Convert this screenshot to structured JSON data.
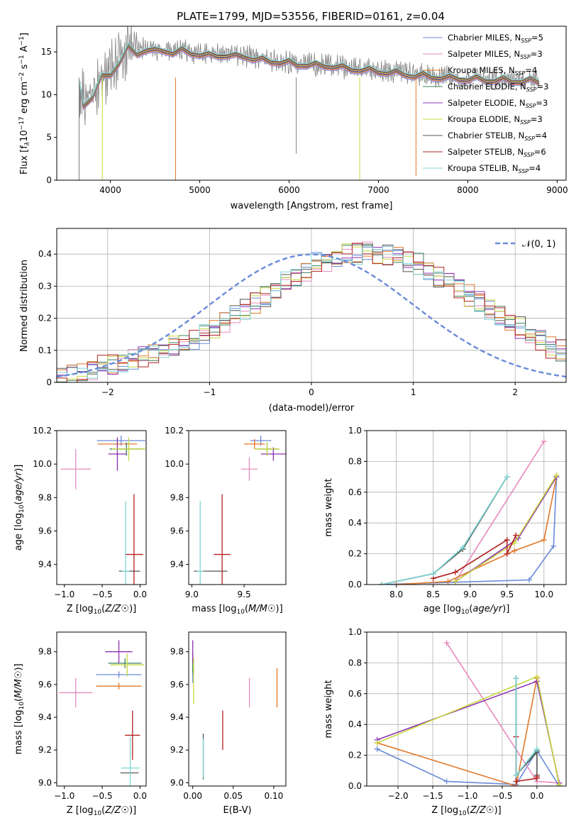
{
  "title": "PLATE=1799, MJD=53556, FIBERID=0161, z=0.04",
  "series": [
    {
      "name": "Chabrier MILES, N",
      "sub": "SSP",
      "eq": "=5",
      "color": "#6a8ad8"
    },
    {
      "name": "Salpeter MILES, N",
      "sub": "SSP",
      "eq": "=3",
      "color": "#e68bbe"
    },
    {
      "name": "Kroupa MILES, N",
      "sub": "SSP",
      "eq": "=4",
      "color": "#e0782a"
    },
    {
      "name": "Chabrier ELODIE, N",
      "sub": "SSP",
      "eq": "=3",
      "color": "#3e7e5e"
    },
    {
      "name": "Salpeter ELODIE, N",
      "sub": "SSP",
      "eq": "=3",
      "color": "#8e30b0"
    },
    {
      "name": "Kroupa ELODIE, N",
      "sub": "SSP",
      "eq": "=3",
      "color": "#c5d840"
    },
    {
      "name": "Chabrier STELIB, N",
      "sub": "SSP",
      "eq": "=4",
      "color": "#555555"
    },
    {
      "name": "Salpeter STELIB, N",
      "sub": "SSP",
      "eq": "=6",
      "color": "#b22020"
    },
    {
      "name": "Kroupa STELIB, N",
      "sub": "SSP",
      "eq": "=4",
      "color": "#7ed6d6"
    }
  ],
  "chart_data": [
    {
      "id": "spectrum",
      "type": "line",
      "xlabel": "wavelength [Angstrom, rest frame]",
      "ylabel": "Flux [f",
      "ylabel_parts": [
        "Flux [f",
        "λ",
        "10",
        "−17",
        " erg cm",
        "−2",
        " s",
        "−1",
        " A",
        "−1",
        "]"
      ],
      "xlim": [
        3400,
        9100
      ],
      "ylim": [
        0,
        18
      ],
      "xticks": [
        4000,
        5000,
        6000,
        7000,
        8000,
        9000
      ],
      "yticks": [
        0,
        5,
        10,
        15
      ],
      "x": [
        3650,
        3700,
        3800,
        3900,
        4000,
        4100,
        4200,
        4300,
        4400,
        4500,
        4600,
        4700,
        4800,
        4900,
        5000,
        5100,
        5200,
        5300,
        5400,
        5500,
        5600,
        5700,
        5800,
        5900,
        6000,
        6100,
        6200,
        6300,
        6400,
        6500,
        6600,
        6700,
        6800,
        6900,
        7000,
        7100,
        7200,
        7300,
        7400,
        7500,
        7600,
        7700,
        7800,
        7900,
        8000,
        8100,
        8200,
        8300,
        8400,
        8500,
        8600,
        8700,
        8800
      ],
      "data_flux": [
        11.0,
        9.5,
        10.5,
        11.5,
        13.0,
        14.5,
        15.0,
        15.5,
        15.5,
        15.2,
        15.4,
        15.0,
        15.3,
        15.0,
        14.8,
        14.6,
        14.7,
        14.8,
        14.5,
        14.6,
        14.3,
        14.1,
        14.0,
        13.9,
        13.8,
        13.6,
        13.6,
        13.5,
        13.5,
        13.4,
        13.2,
        13.1,
        13.0,
        12.9,
        12.8,
        12.7,
        12.6,
        12.5,
        12.3,
        12.3,
        12.2,
        12.1,
        12.0,
        12.0,
        11.9,
        11.9,
        11.8,
        11.8,
        11.8,
        11.7,
        11.7,
        11.7,
        11.6
      ],
      "model_flux": [
        10.5,
        9.2,
        10.2,
        11.3,
        12.8,
        14.2,
        14.8,
        15.2,
        15.3,
        15.0,
        15.2,
        14.9,
        15.1,
        14.9,
        14.7,
        14.5,
        14.6,
        14.6,
        14.4,
        14.5,
        14.2,
        14.0,
        13.9,
        13.8,
        13.7,
        13.5,
        13.5,
        13.4,
        13.4,
        13.3,
        13.1,
        13.0,
        12.9,
        12.8,
        12.7,
        12.6,
        12.5,
        12.4,
        12.2,
        12.2,
        12.1,
        12.0,
        11.9,
        11.9,
        11.8,
        11.8,
        11.7,
        11.7,
        11.7,
        11.6,
        11.6,
        11.6,
        11.5
      ],
      "absorption_lines": [
        {
          "x": 3650,
          "y": 0.0
        },
        {
          "x": 3910,
          "y": 0.0
        },
        {
          "x": 4730,
          "y": 0.0
        },
        {
          "x": 6790,
          "y": 0.0
        },
        {
          "x": 7420,
          "y": 0.5
        },
        {
          "x": 6080,
          "y": 3.1
        }
      ]
    },
    {
      "id": "residuals",
      "type": "histogram",
      "xlabel": "(data-model)/error",
      "ylabel": "Normed distribution",
      "xlim": [
        -2.5,
        2.5
      ],
      "ylim": [
        0,
        0.48
      ],
      "xticks": [
        -2,
        -1,
        0,
        1,
        2
      ],
      "yticks": [
        0.0,
        0.1,
        0.2,
        0.3,
        0.4
      ],
      "grid": true,
      "legend": {
        "label": "𝒩(0, 1)",
        "position": "upper right",
        "color": "#6a8ad8"
      },
      "bin_width": 0.1,
      "bin_start": -2.5,
      "values": [
        0.02,
        0.02,
        0.03,
        0.04,
        0.05,
        0.06,
        0.06,
        0.07,
        0.08,
        0.09,
        0.1,
        0.11,
        0.12,
        0.13,
        0.15,
        0.17,
        0.19,
        0.21,
        0.23,
        0.25,
        0.27,
        0.29,
        0.31,
        0.33,
        0.35,
        0.37,
        0.38,
        0.39,
        0.4,
        0.4,
        0.41,
        0.4,
        0.4,
        0.39,
        0.38,
        0.37,
        0.35,
        0.33,
        0.31,
        0.29,
        0.27,
        0.25,
        0.23,
        0.21,
        0.19,
        0.17,
        0.15,
        0.13,
        0.11,
        0.1
      ]
    },
    {
      "id": "age-vs-z",
      "type": "errorbar",
      "xlabel": "Z [log",
      "ylabel": "age [log",
      "xlim": [
        -1.1,
        0.08
      ],
      "ylim": [
        9.28,
        10.2
      ],
      "xticks": [
        -1.0,
        -0.5,
        0.0
      ],
      "xticklabels": [
        "−1.0",
        "−0.5",
        "0.0"
      ],
      "yticks": [
        9.4,
        9.6,
        9.8,
        10.0,
        10.2
      ],
      "yticklabels": [
        "9.4",
        "9.6",
        "9.8",
        "10.0",
        "10.2"
      ],
      "points": [
        {
          "s": 0,
          "x": -0.25,
          "xerr": 0.32,
          "y": 10.14,
          "yerr": 0.03
        },
        {
          "s": 1,
          "x": -0.85,
          "xerr": 0.2,
          "y": 9.97,
          "yerr": 0.12
        },
        {
          "s": 2,
          "x": -0.3,
          "xerr": 0.26,
          "y": 10.12,
          "yerr": 0.03
        },
        {
          "s": 3,
          "x": -0.18,
          "xerr": 0.22,
          "y": 10.09,
          "yerr": 0.04
        },
        {
          "s": 4,
          "x": -0.3,
          "xerr": 0.12,
          "y": 10.06,
          "yerr": 0.1
        },
        {
          "s": 5,
          "x": -0.15,
          "xerr": 0.22,
          "y": 10.09,
          "yerr": 0.07
        },
        {
          "s": 6,
          "x": -0.14,
          "xerr": 0.14,
          "y": 9.36,
          "yerr": 0.0
        },
        {
          "s": 7,
          "x": -0.08,
          "xerr": 0.12,
          "y": 9.46,
          "yerr": 0.36
        },
        {
          "s": 8,
          "x": -0.19,
          "xerr": 0.05,
          "y": 9.36,
          "yerr": 0.42
        }
      ]
    },
    {
      "id": "age-vs-mass",
      "type": "errorbar",
      "xlabel": "mass [log",
      "ylabel": "",
      "xlim": [
        8.97,
        9.9
      ],
      "ylim": [
        9.28,
        10.2
      ],
      "xticks": [
        9.0,
        9.5
      ],
      "xticklabels": [
        "9.0",
        "9.5"
      ],
      "yticks": [
        9.4,
        9.6,
        9.8,
        10.0,
        10.2
      ],
      "yticklabels": [
        "9.4",
        "9.6",
        "9.8",
        "10.0",
        "10.2"
      ],
      "points": [
        {
          "s": 0,
          "x": 9.66,
          "xerr": 0.1,
          "y": 10.14,
          "yerr": 0.03
        },
        {
          "s": 1,
          "x": 9.55,
          "xerr": 0.08,
          "y": 9.97,
          "yerr": 0.07
        },
        {
          "s": 2,
          "x": 9.6,
          "xerr": 0.1,
          "y": 10.12,
          "yerr": 0.03
        },
        {
          "s": 3,
          "x": 9.72,
          "xerr": 0.1,
          "y": 10.09,
          "yerr": 0.04
        },
        {
          "s": 4,
          "x": 9.78,
          "xerr": 0.12,
          "y": 10.06,
          "yerr": 0.04
        },
        {
          "s": 5,
          "x": 9.72,
          "xerr": 0.12,
          "y": 10.09,
          "yerr": 0.04
        },
        {
          "s": 6,
          "x": 9.18,
          "xerr": 0.16,
          "y": 9.36,
          "yerr": 0.0
        },
        {
          "s": 7,
          "x": 9.29,
          "xerr": 0.08,
          "y": 9.46,
          "yerr": 0.36
        },
        {
          "s": 8,
          "x": 9.08,
          "xerr": 0.03,
          "y": 9.36,
          "yerr": 0.42
        }
      ]
    },
    {
      "id": "weight-vs-age",
      "type": "line",
      "xlabel": "age [log",
      "ylabel": "mass weight",
      "xlim": [
        7.6,
        10.3
      ],
      "ylim": [
        0,
        1
      ],
      "xticks": [
        8.0,
        8.5,
        9.0,
        9.5,
        10.0
      ],
      "xticklabels": [
        "8.0",
        "8.5",
        "9.0",
        "9.5",
        "10.0"
      ],
      "yticks": [
        0.0,
        0.2,
        0.4,
        0.6,
        0.8,
        1.0
      ],
      "yticklabels": [
        "0.0",
        "0.2",
        "0.4",
        "0.6",
        "0.8",
        "1.0"
      ],
      "grid": true,
      "lines": [
        {
          "s": 0,
          "x": [
            7.8,
            9.8,
            10.13,
            10.17
          ],
          "y": [
            0.0,
            0.03,
            0.25,
            0.7
          ]
        },
        {
          "s": 1,
          "x": [
            8.8,
            10.0
          ],
          "y": [
            0.02,
            0.93
          ]
        },
        {
          "s": 2,
          "x": [
            8.0,
            8.7,
            9.6,
            10.0,
            10.17
          ],
          "y": [
            0.0,
            0.02,
            0.22,
            0.29,
            0.7
          ]
        },
        {
          "s": 3,
          "x": [
            7.8,
            8.5,
            8.9,
            9.5
          ],
          "y": [
            0.0,
            0.07,
            0.23,
            0.7
          ]
        },
        {
          "s": 4,
          "x": [
            8.8,
            9.65,
            10.17
          ],
          "y": [
            0.02,
            0.3,
            0.7
          ]
        },
        {
          "s": 5,
          "x": [
            8.8,
            9.6,
            10.17
          ],
          "y": [
            0.02,
            0.27,
            0.71
          ]
        },
        {
          "s": 6,
          "x": [
            7.8,
            8.5,
            8.9,
            9.5
          ],
          "y": [
            0.0,
            0.07,
            0.23,
            0.7
          ]
        },
        {
          "s": 7,
          "x": [
            8.5,
            8.8,
            9.5,
            9.5,
            9.62
          ],
          "y": [
            0.04,
            0.08,
            0.29,
            0.2,
            0.32
          ]
        },
        {
          "s": 8,
          "x": [
            7.8,
            8.5,
            8.9,
            9.5
          ],
          "y": [
            0.0,
            0.07,
            0.24,
            0.7
          ]
        }
      ]
    },
    {
      "id": "mass-vs-z",
      "type": "errorbar",
      "xlabel": "Z [log",
      "ylabel": "mass [log",
      "xlim": [
        -1.1,
        0.08
      ],
      "ylim": [
        8.98,
        9.92
      ],
      "xticks": [
        -1.0,
        -0.5,
        0.0
      ],
      "xticklabels": [
        "−1.0",
        "−0.5",
        "0.0"
      ],
      "yticks": [
        9.0,
        9.2,
        9.4,
        9.6,
        9.8
      ],
      "yticklabels": [
        "9.0",
        "9.2",
        "9.4",
        "9.6",
        "9.8"
      ],
      "points": [
        {
          "s": 0,
          "x": -0.28,
          "xerr": 0.3,
          "y": 9.66,
          "yerr": 0.02
        },
        {
          "s": 1,
          "x": -0.85,
          "xerr": 0.22,
          "y": 9.55,
          "yerr": 0.09
        },
        {
          "s": 2,
          "x": -0.28,
          "xerr": 0.3,
          "y": 9.59,
          "yerr": 0.02
        },
        {
          "s": 3,
          "x": -0.2,
          "xerr": 0.22,
          "y": 9.73,
          "yerr": 0.03
        },
        {
          "s": 4,
          "x": -0.28,
          "xerr": 0.18,
          "y": 9.8,
          "yerr": 0.07
        },
        {
          "s": 5,
          "x": -0.17,
          "xerr": 0.22,
          "y": 9.72,
          "yerr": 0.07
        },
        {
          "s": 6,
          "x": -0.14,
          "xerr": 0.12,
          "y": 9.06,
          "yerr": 0.0
        },
        {
          "s": 7,
          "x": -0.1,
          "xerr": 0.1,
          "y": 9.29,
          "yerr": 0.15
        },
        {
          "s": 8,
          "x": -0.13,
          "xerr": 0.12,
          "y": 9.09,
          "yerr": 0.19
        }
      ]
    },
    {
      "id": "mass-vs-ebv",
      "type": "errorbar",
      "xlabel": "E(B-V)",
      "ylabel": "",
      "xlim": [
        -0.005,
        0.115
      ],
      "ylim": [
        8.98,
        9.92
      ],
      "xticks": [
        0.0,
        0.05,
        0.1
      ],
      "xticklabels": [
        "0.00",
        "0.05",
        "0.10"
      ],
      "yticks": [
        9.0,
        9.2,
        9.4,
        9.6,
        9.8
      ],
      "yticklabels": [
        "9.0",
        "9.2",
        "9.4",
        "9.6",
        "9.8"
      ],
      "points": [
        {
          "s": 0,
          "x": 0.0,
          "xerr": 0.0,
          "y": 9.66,
          "yerr": 0.05
        },
        {
          "s": 1,
          "x": 0.07,
          "xerr": 0.0,
          "y": 9.55,
          "yerr": 0.09
        },
        {
          "s": 2,
          "x": 0.104,
          "xerr": 0.0,
          "y": 9.58,
          "yerr": 0.12
        },
        {
          "s": 3,
          "x": 0.0,
          "xerr": 0.0,
          "y": 9.73,
          "yerr": 0.06
        },
        {
          "s": 4,
          "x": 0.0,
          "xerr": 0.0,
          "y": 9.8,
          "yerr": 0.07
        },
        {
          "s": 5,
          "x": 0.001,
          "xerr": 0.0,
          "y": 9.62,
          "yerr": 0.14
        },
        {
          "s": 6,
          "x": 0.013,
          "xerr": 0.0,
          "y": 9.16,
          "yerr": 0.14
        },
        {
          "s": 7,
          "x": 0.037,
          "xerr": 0.0,
          "y": 9.32,
          "yerr": 0.12
        },
        {
          "s": 8,
          "x": 0.013,
          "xerr": 0.0,
          "y": 9.15,
          "yerr": 0.12
        }
      ]
    },
    {
      "id": "weight-vs-z",
      "type": "line",
      "xlabel": "Z [log",
      "ylabel": "mass weight",
      "xlim": [
        -2.45,
        0.42
      ],
      "ylim": [
        0,
        1
      ],
      "xticks": [
        -2.0,
        -1.5,
        -1.0,
        -0.5,
        0.0
      ],
      "xticklabels": [
        "−2.0",
        "−1.5",
        "−1.0",
        "−0.5",
        "0.0"
      ],
      "yticks": [
        0.0,
        0.2,
        0.4,
        0.6,
        0.8,
        1.0
      ],
      "yticklabels": [
        "0.0",
        "0.2",
        "0.4",
        "0.6",
        "0.8",
        "1.0"
      ],
      "grid": true,
      "lines": [
        {
          "s": 0,
          "x": [
            -2.3,
            -1.3,
            -0.3,
            0.0,
            0.32
          ],
          "y": [
            0.24,
            0.03,
            0.01,
            0.23,
            0.0
          ]
        },
        {
          "s": 1,
          "x": [
            -1.3,
            0.0,
            0.32
          ],
          "y": [
            0.93,
            0.03,
            0.02
          ]
        },
        {
          "s": 2,
          "x": [
            -2.3,
            -0.3,
            0.0,
            0.32
          ],
          "y": [
            0.28,
            0.0,
            0.7,
            0.01
          ]
        },
        {
          "s": 3,
          "x": [
            -0.3,
            -0.3,
            0.0
          ],
          "y": [
            0.7,
            0.07,
            0.23
          ]
        },
        {
          "s": 4,
          "x": [
            -2.3,
            0.0,
            0.32
          ],
          "y": [
            0.3,
            0.68,
            0.02
          ]
        },
        {
          "s": 5,
          "x": [
            -2.3,
            0.0,
            0.32
          ],
          "y": [
            0.28,
            0.71,
            0.01
          ]
        },
        {
          "s": 6,
          "x": [
            -0.3,
            -0.3,
            0.0,
            0.0
          ],
          "y": [
            0.7,
            0.07,
            0.22,
            0.07
          ]
        },
        {
          "s": 7,
          "x": [
            -0.3,
            -0.3,
            0.0,
            0.0
          ],
          "y": [
            0.32,
            0.03,
            0.05,
            0.06
          ]
        },
        {
          "s": 8,
          "x": [
            -0.3,
            -0.3,
            0.0
          ],
          "y": [
            0.7,
            0.07,
            0.24
          ]
        }
      ]
    }
  ]
}
